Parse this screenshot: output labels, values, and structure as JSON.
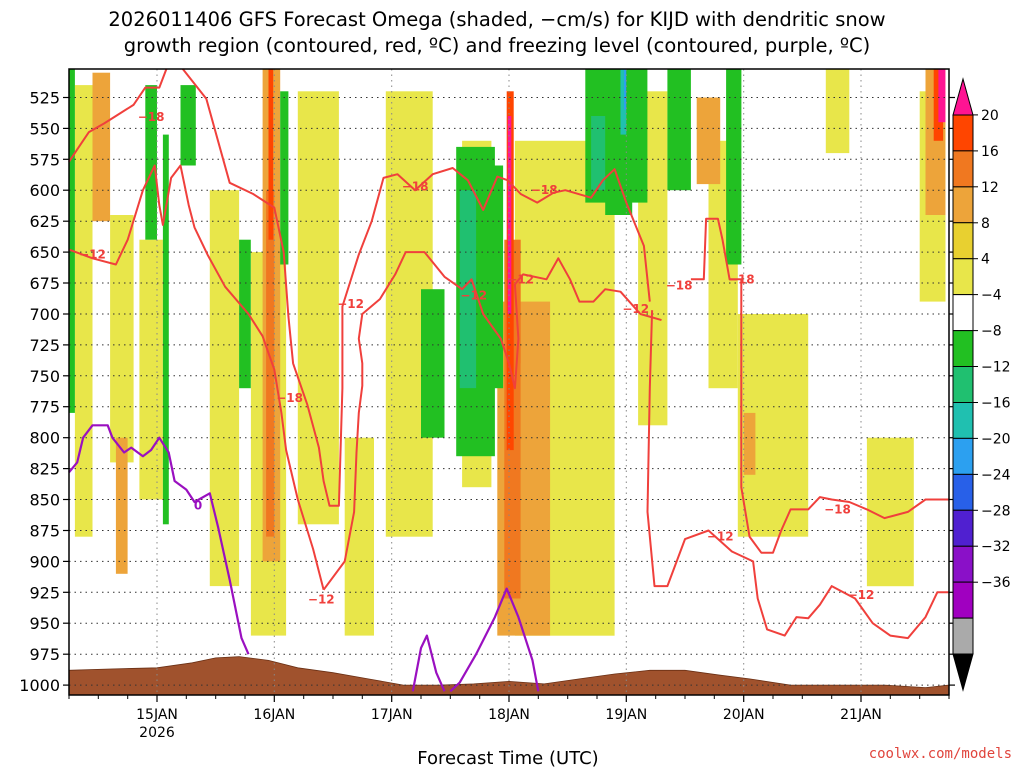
{
  "chart_data": {
    "type": "heatmap",
    "title": [
      "2026011406 GFS Forecast Omega (shaded, −cm/s) for KIJD with dendritic snow",
      "growth region (contoured, red, ºC) and freezing level (contoured, purple, ºC)"
    ],
    "xlabel": "Forecast Time (UTC)",
    "ylabel": "",
    "x_ticks": [
      "15JAN",
      "16JAN",
      "17JAN",
      "18JAN",
      "19JAN",
      "20JAN",
      "21JAN"
    ],
    "x_sub": "2026",
    "x_range_days": [
      -0.75,
      6.75
    ],
    "y_ticks": [
      525,
      550,
      575,
      600,
      625,
      650,
      675,
      700,
      725,
      750,
      775,
      800,
      825,
      850,
      875,
      900,
      925,
      950,
      975,
      1000
    ],
    "ylim": [
      1008,
      502
    ],
    "colorbar": {
      "ticks": [
        20,
        16,
        12,
        8,
        4,
        -4,
        -8,
        -12,
        -16,
        -20,
        -24,
        -28,
        -32,
        -36
      ],
      "colors": [
        "#ff1493",
        "#ff4500",
        "#f07820",
        "#eda43a",
        "#e8d030",
        "#e8e64a",
        "#ffffff",
        "#22c022",
        "#20c070",
        "#20c0b0",
        "#2ca0f0",
        "#2860e8",
        "#5020d0",
        "#8a10c8",
        "#a000c0",
        "#aaaaaa",
        "#000000"
      ]
    },
    "contour_labels": {
      "red": [
        {
          "text": "−18",
          "day": -0.05,
          "p": 541
        },
        {
          "text": "−12",
          "day": -0.55,
          "p": 652
        },
        {
          "text": "−18",
          "day": 1.13,
          "p": 768
        },
        {
          "text": "−12",
          "day": 1.4,
          "p": 931
        },
        {
          "text": "−12",
          "day": 1.65,
          "p": 692
        },
        {
          "text": "−18",
          "day": 2.2,
          "p": 597
        },
        {
          "text": "−12",
          "day": 2.7,
          "p": 685
        },
        {
          "text": "−12",
          "day": 3.1,
          "p": 672
        },
        {
          "text": "−18",
          "day": 3.3,
          "p": 600
        },
        {
          "text": "−12",
          "day": 4.08,
          "p": 696
        },
        {
          "text": "−18",
          "day": 4.45,
          "p": 677
        },
        {
          "text": "−18",
          "day": 4.98,
          "p": 672
        },
        {
          "text": "−12",
          "day": 4.8,
          "p": 880
        },
        {
          "text": "−18",
          "day": 5.8,
          "p": 858
        },
        {
          "text": "−12",
          "day": 6.0,
          "p": 927
        }
      ],
      "purple": [
        {
          "text": "0",
          "day": 0.35,
          "p": 855
        }
      ]
    },
    "red_contours": [
      [
        [
          -0.75,
          577
        ],
        [
          -0.68,
          567
        ],
        [
          -0.58,
          553
        ],
        [
          -0.45,
          546
        ],
        [
          -0.35,
          540
        ],
        [
          -0.2,
          531
        ],
        [
          -0.1,
          517
        ],
        [
          0.02,
          517
        ],
        [
          0.08,
          502
        ]
      ],
      [
        [
          0.22,
          502
        ],
        [
          0.42,
          526
        ],
        [
          0.52,
          560
        ],
        [
          0.62,
          594
        ],
        [
          0.82,
          603
        ],
        [
          1.0,
          614
        ],
        [
          1.08,
          650
        ],
        [
          1.12,
          702
        ],
        [
          1.16,
          740
        ],
        [
          1.28,
          773
        ],
        [
          1.38,
          808
        ],
        [
          1.42,
          835
        ],
        [
          1.47,
          855
        ],
        [
          1.55,
          855
        ],
        [
          1.58,
          760
        ],
        [
          1.58,
          694
        ],
        [
          1.72,
          652
        ],
        [
          1.83,
          625
        ],
        [
          1.93,
          590
        ],
        [
          2.05,
          587
        ],
        [
          2.2,
          600
        ],
        [
          2.35,
          587
        ],
        [
          2.52,
          582
        ],
        [
          2.65,
          592
        ],
        [
          2.78,
          616
        ],
        [
          2.9,
          589
        ],
        [
          2.99,
          592
        ],
        [
          3.1,
          603
        ],
        [
          3.24,
          610
        ],
        [
          3.38,
          602
        ],
        [
          3.48,
          600
        ],
        [
          3.7,
          606
        ],
        [
          3.8,
          592
        ],
        [
          3.9,
          583
        ],
        [
          4.0,
          610
        ],
        [
          4.15,
          645
        ],
        [
          4.2,
          690
        ]
      ],
      [
        [
          -0.75,
          648
        ],
        [
          -0.55,
          655
        ],
        [
          -0.35,
          660
        ],
        [
          -0.25,
          640
        ],
        [
          -0.12,
          600
        ],
        [
          -0.02,
          580
        ],
        [
          0.02,
          612
        ],
        [
          0.05,
          628
        ],
        [
          0.12,
          590
        ],
        [
          0.2,
          580
        ],
        [
          0.27,
          612
        ],
        [
          0.32,
          630
        ],
        [
          0.43,
          652
        ],
        [
          0.58,
          678
        ],
        [
          0.78,
          700
        ],
        [
          0.9,
          718
        ],
        [
          1.0,
          745
        ],
        [
          1.06,
          780
        ],
        [
          1.1,
          810
        ],
        [
          1.2,
          850
        ],
        [
          1.33,
          890
        ],
        [
          1.42,
          923
        ]
      ],
      [
        [
          1.42,
          923
        ],
        [
          1.6,
          900
        ],
        [
          1.68,
          860
        ],
        [
          1.7,
          812
        ],
        [
          1.72,
          780
        ],
        [
          1.75,
          758
        ],
        [
          1.75,
          740
        ],
        [
          1.72,
          720
        ],
        [
          1.75,
          700
        ],
        [
          1.9,
          688
        ],
        [
          2.03,
          668
        ],
        [
          2.12,
          650
        ],
        [
          2.28,
          650
        ],
        [
          2.45,
          670
        ],
        [
          2.6,
          680
        ],
        [
          2.68,
          672
        ],
        [
          2.78,
          700
        ],
        [
          2.93,
          720
        ],
        [
          3.0,
          740
        ],
        [
          3.05,
          760
        ],
        [
          3.08,
          720
        ],
        [
          3.05,
          676
        ],
        [
          3.12,
          668
        ],
        [
          3.32,
          672
        ],
        [
          3.42,
          655
        ],
        [
          3.52,
          672
        ],
        [
          3.6,
          690
        ],
        [
          3.72,
          690
        ],
        [
          3.82,
          680
        ],
        [
          3.95,
          682
        ],
        [
          4.12,
          700
        ],
        [
          4.3,
          705
        ]
      ],
      [
        [
          4.55,
          672
        ],
        [
          4.66,
          672
        ],
        [
          4.68,
          623
        ],
        [
          4.78,
          623
        ],
        [
          4.82,
          640
        ],
        [
          4.88,
          672
        ],
        [
          4.98,
          672
        ],
        [
          4.98,
          840
        ],
        [
          5.05,
          880
        ],
        [
          5.15,
          893
        ],
        [
          5.25,
          893
        ],
        [
          5.32,
          875
        ],
        [
          5.4,
          858
        ],
        [
          5.55,
          858
        ],
        [
          5.65,
          848
        ],
        [
          5.75,
          850
        ],
        [
          5.9,
          852
        ],
        [
          6.05,
          858
        ],
        [
          6.2,
          865
        ],
        [
          6.4,
          860
        ],
        [
          6.55,
          850
        ],
        [
          6.75,
          850
        ]
      ],
      [
        [
          4.22,
          697
        ],
        [
          4.2,
          760
        ],
        [
          4.18,
          860
        ],
        [
          4.24,
          920
        ],
        [
          4.35,
          920
        ],
        [
          4.5,
          882
        ],
        [
          4.7,
          875
        ],
        [
          4.9,
          892
        ],
        [
          5.08,
          900
        ],
        [
          5.12,
          930
        ],
        [
          5.2,
          955
        ],
        [
          5.35,
          960
        ],
        [
          5.45,
          945
        ],
        [
          5.55,
          946
        ],
        [
          5.65,
          935
        ],
        [
          5.75,
          920
        ],
        [
          5.95,
          930
        ],
        [
          6.1,
          950
        ],
        [
          6.25,
          960
        ],
        [
          6.4,
          962
        ],
        [
          6.55,
          945
        ],
        [
          6.65,
          925
        ],
        [
          6.75,
          925
        ]
      ]
    ],
    "purple_contours": [
      [
        [
          -0.75,
          828
        ],
        [
          -0.68,
          820
        ],
        [
          -0.63,
          800
        ],
        [
          -0.55,
          790
        ],
        [
          -0.42,
          790
        ],
        [
          -0.38,
          800
        ],
        [
          -0.28,
          812
        ],
        [
          -0.22,
          808
        ],
        [
          -0.12,
          815
        ],
        [
          -0.05,
          810
        ],
        [
          0.02,
          800
        ],
        [
          0.1,
          812
        ],
        [
          0.15,
          835
        ],
        [
          0.25,
          842
        ],
        [
          0.32,
          852
        ],
        [
          0.45,
          845
        ],
        [
          0.52,
          872
        ],
        [
          0.62,
          915
        ],
        [
          0.72,
          962
        ],
        [
          0.78,
          975
        ]
      ],
      [
        [
          2.18,
          1005
        ],
        [
          2.25,
          970
        ],
        [
          2.3,
          960
        ],
        [
          2.38,
          990
        ],
        [
          2.45,
          1005
        ]
      ],
      [
        [
          2.5,
          1005
        ],
        [
          2.58,
          998
        ],
        [
          2.72,
          975
        ],
        [
          2.88,
          945
        ],
        [
          2.98,
          922
        ],
        [
          3.08,
          945
        ],
        [
          3.2,
          980
        ],
        [
          3.25,
          1005
        ]
      ]
    ],
    "terrain_hpa": [
      [
        -0.75,
        988
      ],
      [
        -0.4,
        987
      ],
      [
        0.0,
        986
      ],
      [
        0.3,
        982
      ],
      [
        0.5,
        978
      ],
      [
        0.7,
        977
      ],
      [
        0.95,
        980
      ],
      [
        1.2,
        986
      ],
      [
        1.5,
        990
      ],
      [
        1.8,
        995
      ],
      [
        2.1,
        1000
      ],
      [
        2.4,
        1000
      ],
      [
        2.7,
        999
      ],
      [
        3.0,
        997
      ],
      [
        3.3,
        999
      ],
      [
        3.6,
        995
      ],
      [
        3.9,
        991
      ],
      [
        4.2,
        988
      ],
      [
        4.5,
        988
      ],
      [
        4.8,
        992
      ],
      [
        5.05,
        995
      ],
      [
        5.4,
        1000
      ],
      [
        5.8,
        1000
      ],
      [
        6.2,
        1000
      ],
      [
        6.55,
        1002
      ],
      [
        6.75,
        1000
      ]
    ],
    "shaded_regions": [
      {
        "color": "#e8e64a",
        "d0": -0.7,
        "d1": -0.55,
        "p0": 515,
        "p1": 880
      },
      {
        "color": "#e8e64a",
        "d0": -0.4,
        "d1": -0.2,
        "p0": 620,
        "p1": 820
      },
      {
        "color": "#e8e64a",
        "d0": -0.15,
        "d1": 0.05,
        "p0": 640,
        "p1": 850
      },
      {
        "color": "#e8e64a",
        "d0": 0.45,
        "d1": 0.7,
        "p0": 600,
        "p1": 920
      },
      {
        "color": "#e8e64a",
        "d0": 0.8,
        "d1": 1.1,
        "p0": 650,
        "p1": 960
      },
      {
        "color": "#e8e64a",
        "d0": 1.2,
        "d1": 1.55,
        "p0": 520,
        "p1": 870
      },
      {
        "color": "#e8e64a",
        "d0": 1.6,
        "d1": 1.85,
        "p0": 800,
        "p1": 960
      },
      {
        "color": "#e8e64a",
        "d0": 1.95,
        "d1": 2.35,
        "p0": 520,
        "p1": 880
      },
      {
        "color": "#e8e64a",
        "d0": 2.6,
        "d1": 2.85,
        "p0": 560,
        "p1": 840
      },
      {
        "color": "#e8e64a",
        "d0": 3.05,
        "d1": 3.9,
        "p0": 560,
        "p1": 960
      },
      {
        "color": "#e8e64a",
        "d0": 4.1,
        "d1": 4.35,
        "p0": 520,
        "p1": 790
      },
      {
        "color": "#e8e64a",
        "d0": 4.7,
        "d1": 4.95,
        "p0": 560,
        "p1": 760
      },
      {
        "color": "#e8e64a",
        "d0": 4.95,
        "d1": 5.55,
        "p0": 700,
        "p1": 880
      },
      {
        "color": "#e8e64a",
        "d0": 5.7,
        "d1": 5.9,
        "p0": 502,
        "p1": 570
      },
      {
        "color": "#e8e64a",
        "d0": 6.05,
        "d1": 6.45,
        "p0": 800,
        "p1": 920
      },
      {
        "color": "#e8e64a",
        "d0": 6.5,
        "d1": 6.72,
        "p0": 520,
        "p1": 690
      },
      {
        "color": "#eda43a",
        "d0": -0.55,
        "d1": -0.4,
        "p0": 505,
        "p1": 625
      },
      {
        "color": "#eda43a",
        "d0": -0.35,
        "d1": -0.25,
        "p0": 800,
        "p1": 910
      },
      {
        "color": "#eda43a",
        "d0": 0.9,
        "d1": 1.05,
        "p0": 502,
        "p1": 900
      },
      {
        "color": "#f07820",
        "d0": 0.93,
        "d1": 1.0,
        "p0": 600,
        "p1": 880
      },
      {
        "color": "#ff4500",
        "d0": 0.95,
        "d1": 0.99,
        "p0": 502,
        "p1": 640
      },
      {
        "color": "#eda43a",
        "d0": 2.9,
        "d1": 3.35,
        "p0": 690,
        "p1": 960
      },
      {
        "color": "#f07820",
        "d0": 2.96,
        "d1": 3.1,
        "p0": 640,
        "p1": 930
      },
      {
        "color": "#ff4500",
        "d0": 2.98,
        "d1": 3.04,
        "p0": 520,
        "p1": 810
      },
      {
        "color": "#ff1493",
        "d0": 2.99,
        "d1": 3.02,
        "p0": 540,
        "p1": 700
      },
      {
        "color": "#eda43a",
        "d0": 3.1,
        "d1": 3.3,
        "p0": 740,
        "p1": 940
      },
      {
        "color": "#eda43a",
        "d0": 4.6,
        "d1": 4.8,
        "p0": 525,
        "p1": 595
      },
      {
        "color": "#eda43a",
        "d0": 5.0,
        "d1": 5.1,
        "p0": 780,
        "p1": 830
      },
      {
        "color": "#eda43a",
        "d0": 6.55,
        "d1": 6.72,
        "p0": 502,
        "p1": 620
      },
      {
        "color": "#ff4500",
        "d0": 6.62,
        "d1": 6.7,
        "p0": 502,
        "p1": 560
      },
      {
        "color": "#ff1493",
        "d0": 6.66,
        "d1": 6.72,
        "p0": 502,
        "p1": 545
      },
      {
        "color": "#22c022",
        "d0": -0.75,
        "d1": -0.7,
        "p0": 502,
        "p1": 780
      },
      {
        "color": "#22c022",
        "d0": -0.1,
        "d1": 0.0,
        "p0": 515,
        "p1": 640
      },
      {
        "color": "#22c022",
        "d0": 0.05,
        "d1": 0.1,
        "p0": 555,
        "p1": 870
      },
      {
        "color": "#22c022",
        "d0": 0.2,
        "d1": 0.33,
        "p0": 515,
        "p1": 580
      },
      {
        "color": "#22c022",
        "d0": 0.7,
        "d1": 0.8,
        "p0": 640,
        "p1": 760
      },
      {
        "color": "#22c022",
        "d0": 1.05,
        "d1": 1.12,
        "p0": 520,
        "p1": 660
      },
      {
        "color": "#22c022",
        "d0": 2.25,
        "d1": 2.45,
        "p0": 680,
        "p1": 800
      },
      {
        "color": "#22c022",
        "d0": 2.55,
        "d1": 2.88,
        "p0": 565,
        "p1": 815
      },
      {
        "color": "#20c070",
        "d0": 2.58,
        "d1": 2.72,
        "p0": 600,
        "p1": 760
      },
      {
        "color": "#22c022",
        "d0": 2.78,
        "d1": 2.95,
        "p0": 580,
        "p1": 760
      },
      {
        "color": "#22c022",
        "d0": 3.65,
        "d1": 4.0,
        "p0": 502,
        "p1": 610
      },
      {
        "color": "#20c070",
        "d0": 3.7,
        "d1": 3.95,
        "p0": 540,
        "p1": 600
      },
      {
        "color": "#22c022",
        "d0": 3.82,
        "d1": 4.05,
        "p0": 502,
        "p1": 620
      },
      {
        "color": "#20c0b0",
        "d0": 3.95,
        "d1": 4.02,
        "p0": 502,
        "p1": 555
      },
      {
        "color": "#2ca0f0",
        "d0": 3.98,
        "d1": 4.05,
        "p0": 502,
        "p1": 535
      },
      {
        "color": "#2860e8",
        "d0": 4.0,
        "d1": 4.04,
        "p0": 502,
        "p1": 530
      },
      {
        "color": "#22c022",
        "d0": 4.0,
        "d1": 4.18,
        "p0": 502,
        "p1": 610
      },
      {
        "color": "#22c022",
        "d0": 4.35,
        "d1": 4.55,
        "p0": 502,
        "p1": 600
      },
      {
        "color": "#22c022",
        "d0": 4.85,
        "d1": 4.98,
        "p0": 502,
        "p1": 660
      }
    ]
  }
}
